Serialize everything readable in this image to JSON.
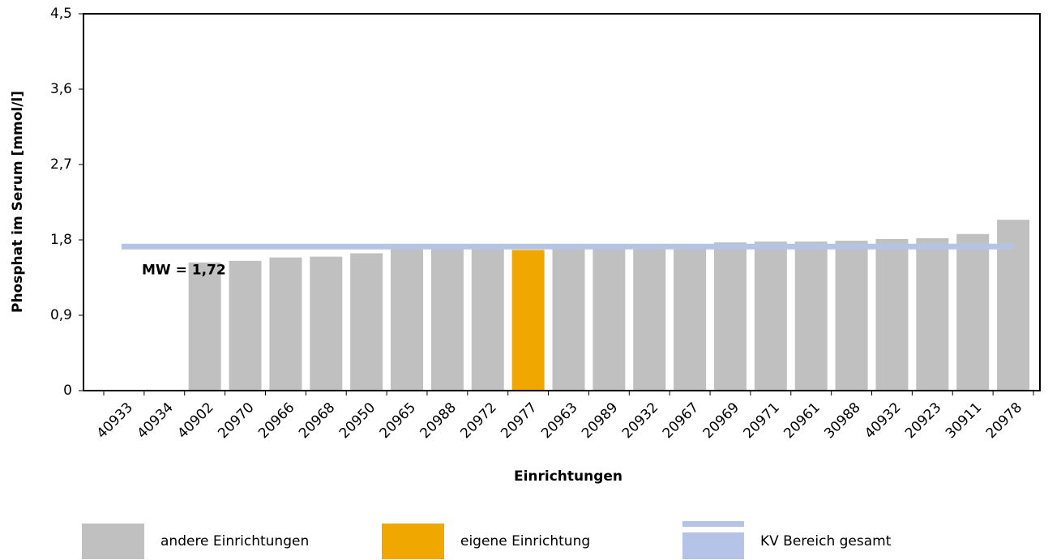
{
  "chart_data": {
    "type": "bar",
    "x_label": "Einrichtungen",
    "y_label": "Phosphat im Serum [mmol/l]",
    "categories": [
      "40933",
      "40934",
      "40902",
      "20970",
      "20966",
      "20968",
      "20950",
      "20965",
      "20988",
      "20972",
      "20977",
      "20963",
      "20989",
      "20932",
      "20967",
      "20969",
      "20971",
      "20961",
      "30988",
      "40932",
      "20923",
      "30911",
      "20978"
    ],
    "series": [
      {
        "name": "andere Einrichtungen",
        "color": "#c0c0c0",
        "values": [
          null,
          null,
          1.53,
          1.55,
          1.59,
          1.6,
          1.64,
          1.7,
          1.7,
          1.7,
          null,
          1.7,
          1.71,
          1.71,
          1.72,
          1.77,
          1.78,
          1.78,
          1.79,
          1.81,
          1.82,
          1.87,
          2.04
        ]
      },
      {
        "name": "eigene Einrichtung",
        "color": "#f0a800",
        "values": [
          null,
          null,
          null,
          null,
          null,
          null,
          null,
          null,
          null,
          null,
          1.68,
          null,
          null,
          null,
          null,
          null,
          null,
          null,
          null,
          null,
          null,
          null,
          null
        ]
      }
    ],
    "reference_line": {
      "name": "KV Bereich gesamt",
      "color": "#b4c3e6",
      "value": 1.72,
      "label": "MW = 1,72"
    },
    "ylim": [
      0,
      4.5
    ],
    "yticks": [
      0,
      {
        "value": 0.9,
        "label": "0,9"
      },
      {
        "value": 1.8,
        "label": "1,8"
      },
      {
        "value": 2.7,
        "label": "2,7"
      },
      {
        "value": 3.6,
        "label": "3,6"
      },
      {
        "value": 4.5,
        "label": "4,5"
      }
    ]
  }
}
